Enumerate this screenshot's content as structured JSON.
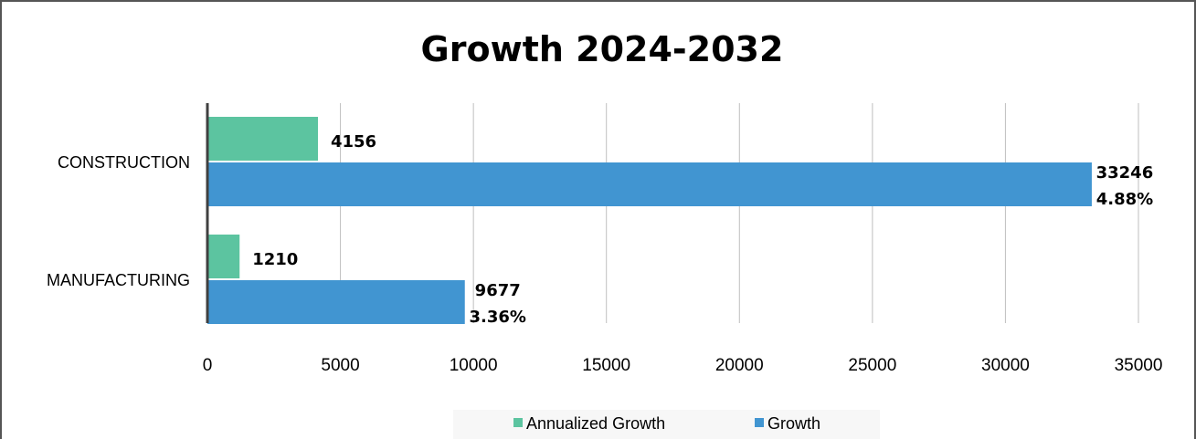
{
  "chart_data": {
    "type": "bar",
    "orientation": "horizontal",
    "title": "Growth 2024-2032",
    "categories": [
      "CONSTRUCTION",
      "MANUFACTURING"
    ],
    "series": [
      {
        "name": "Annualized Growth",
        "color": "#5cc4a0",
        "values": [
          4156,
          1210
        ],
        "labels": [
          "4156",
          "1210"
        ]
      },
      {
        "name": "Growth",
        "color": "#4195d1",
        "values": [
          33246,
          9677
        ],
        "labels": [
          "33246",
          "9677"
        ],
        "sublabels": [
          "4.88%",
          "3.36%"
        ]
      }
    ],
    "xlim": [
      0,
      35000
    ],
    "xticks": [
      "0",
      "5000",
      "10000",
      "15000",
      "20000",
      "25000",
      "30000",
      "35000"
    ],
    "grid": true,
    "legend": "bottom"
  }
}
